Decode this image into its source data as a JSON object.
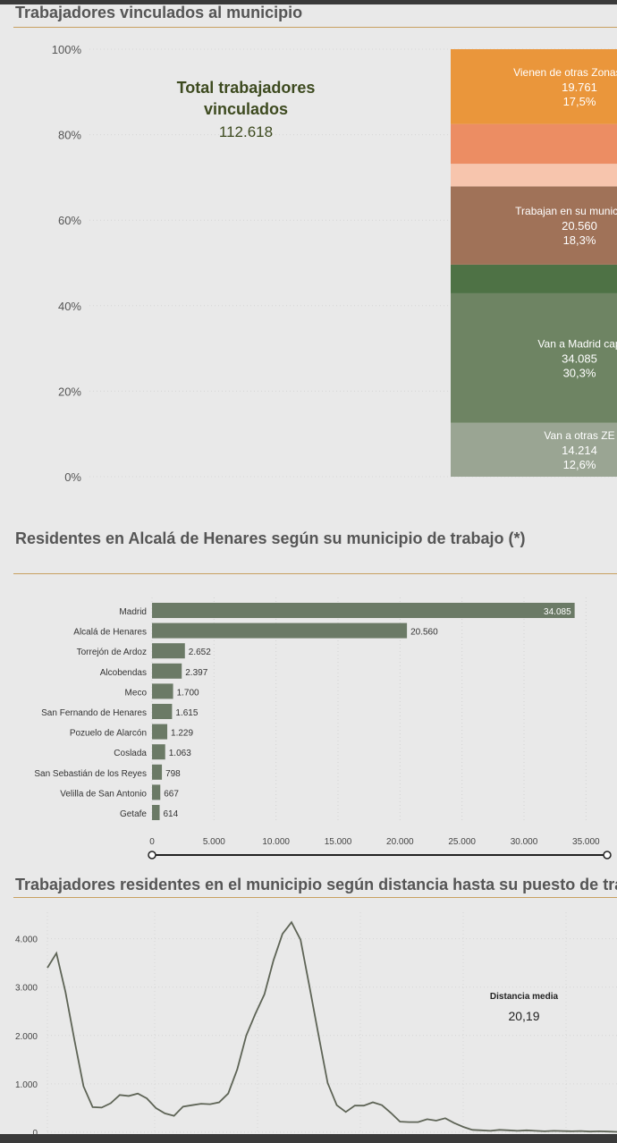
{
  "section1": {
    "title": "Trabajadores vinculados al municipio",
    "kpi_label_line1": "Total trabajadores",
    "kpi_label_line2": "vinculados",
    "kpi_value": "112.618"
  },
  "section2": {
    "title": "Residentes en Alcalá de Henares según su municipio de trabajo (*)"
  },
  "section3": {
    "title": "Trabajadores residentes en el municipio según distancia hasta su puesto de traba",
    "kpi_label": "Distancia media",
    "kpi_value": "20,19"
  },
  "colors": {
    "title": "#555555",
    "rule": "#c8a060",
    "kpi_dark_green": "#3d4a1f",
    "bar": "#6b7a66",
    "line": "#5e6456"
  },
  "chart_data": [
    {
      "type": "bar",
      "stacked": true,
      "orientation": "vertical",
      "ylim": [
        0,
        100
      ],
      "y_ticks": [
        "0%",
        "20%",
        "40%",
        "60%",
        "80%",
        "100%"
      ],
      "segments": [
        {
          "label": "Van a otras ZE",
          "value_text": "14.214",
          "pct_text": "12,6%",
          "pct": 12.6,
          "color": "#9aa593",
          "text_color": "#ffffff"
        },
        {
          "label": "Van a Madrid cap",
          "value_text": "34.085",
          "pct_text": "30,3%",
          "pct": 30.3,
          "color": "#6e8463",
          "text_color": "#ffffff"
        },
        {
          "label": "",
          "value_text": "",
          "pct_text": "",
          "pct": 6.7,
          "color": "#4e7245",
          "text_color": "#ffffff"
        },
        {
          "label": "Trabajan en su municipio d",
          "value_text": "20.560",
          "pct_text": "18,3%",
          "pct": 18.3,
          "color": "#a07258",
          "text_color": "#ffffff"
        },
        {
          "label": "",
          "value_text": "",
          "pct_text": "",
          "pct": 5.3,
          "color": "#f7c5ad",
          "text_color": "#ffffff"
        },
        {
          "label": "",
          "value_text": "",
          "pct_text": "",
          "pct": 9.3,
          "color": "#ec8d63",
          "text_color": "#ffffff"
        },
        {
          "label": "Vienen de otras Zonas Esta",
          "value_text": "19.761",
          "pct_text": "17,5%",
          "pct": 17.5,
          "color": "#ea963b",
          "text_color": "#ffffff"
        }
      ]
    },
    {
      "type": "bar",
      "orientation": "horizontal",
      "categories": [
        "Madrid",
        "Alcalá de Henares",
        "Torrejón de Ardoz",
        "Alcobendas",
        "Meco",
        "San Fernando de Henares",
        "Pozuelo de Alarcón",
        "Coslada",
        "San Sebastián de los Reyes",
        "Velilla de San Antonio",
        "Getafe"
      ],
      "values": [
        34085,
        20560,
        2652,
        2397,
        1700,
        1615,
        1229,
        1063,
        798,
        667,
        614
      ],
      "value_labels": [
        "34.085",
        "20.560",
        "2.652",
        "2.397",
        "1.700",
        "1.615",
        "1.229",
        "1.063",
        "798",
        "667",
        "614"
      ],
      "xlim": [
        0,
        37500
      ],
      "x_ticks": [
        0,
        5000,
        10000,
        15000,
        20000,
        25000,
        30000,
        35000
      ],
      "x_tick_labels": [
        "0",
        "5.000",
        "10.000",
        "15.000",
        "20.000",
        "25.000",
        "30.000",
        "35.000"
      ]
    },
    {
      "type": "line",
      "x": [
        0,
        1,
        2,
        3,
        4,
        5,
        6,
        7,
        8,
        9,
        10,
        11,
        12,
        13,
        14,
        15,
        16,
        17,
        18,
        19,
        20,
        21,
        22,
        23,
        24,
        25,
        26,
        27,
        28,
        29,
        30,
        31,
        32,
        33,
        34,
        35,
        36,
        37,
        38,
        39,
        40,
        41,
        42,
        43,
        44,
        45,
        46,
        47,
        48,
        49,
        50,
        51,
        52,
        53,
        54,
        55,
        56,
        57,
        58,
        59,
        60,
        61,
        62,
        63
      ],
      "y": [
        3400,
        3700,
        2900,
        1900,
        950,
        520,
        510,
        600,
        770,
        750,
        800,
        700,
        500,
        390,
        340,
        530,
        560,
        590,
        580,
        620,
        800,
        1300,
        2000,
        2450,
        2850,
        3550,
        4100,
        4340,
        3980,
        3000,
        2000,
        1020,
        560,
        420,
        550,
        550,
        620,
        560,
        400,
        220,
        210,
        210,
        270,
        240,
        290,
        190,
        110,
        50,
        40,
        30,
        50,
        40,
        30,
        40,
        30,
        20,
        30,
        25,
        20,
        25,
        15,
        20,
        15,
        10
      ],
      "ylim": [
        0,
        4400
      ],
      "y_ticks": [
        0,
        1000,
        2000,
        3000,
        4000
      ],
      "y_tick_labels": [
        "0",
        "1.000",
        "2.000",
        "3.000",
        "4.000"
      ]
    }
  ]
}
